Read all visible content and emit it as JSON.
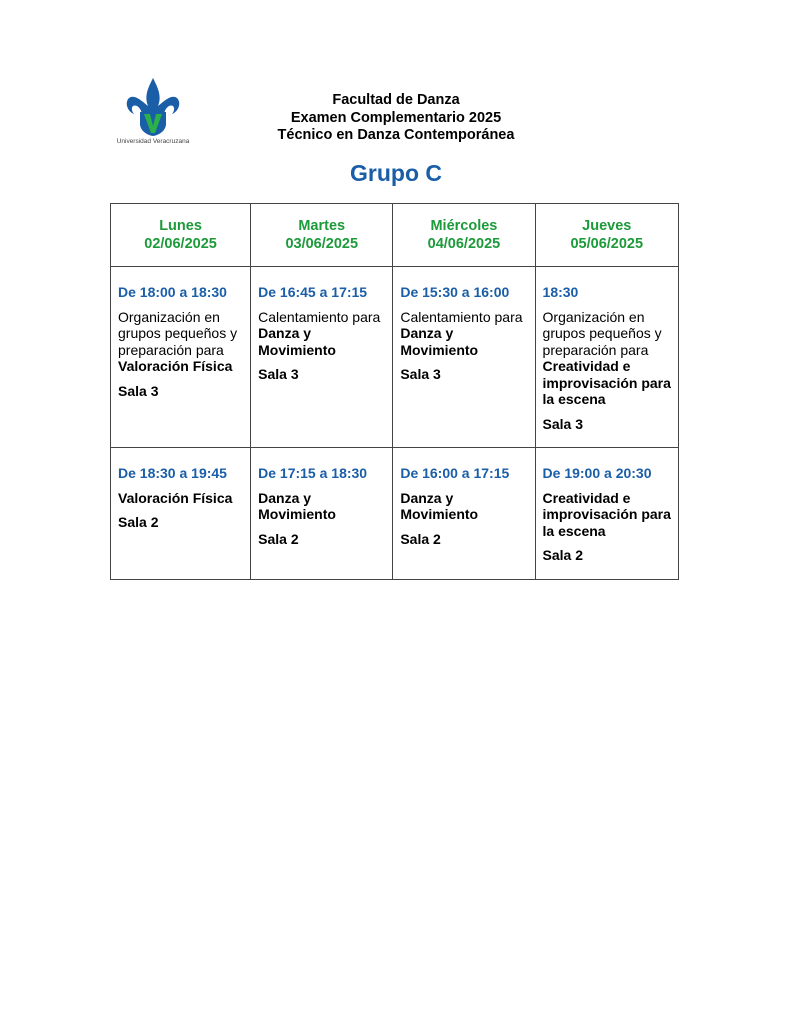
{
  "logo": {
    "text": "Universidad Veracruzana",
    "colors": {
      "blue": "#1a5ea8",
      "green": "#2bb04a"
    }
  },
  "header": {
    "line1": "Facultad de Danza",
    "line2": "Examen Complementario 2025",
    "line3": "Técnico en Danza Contemporánea"
  },
  "title": "Grupo C",
  "colors": {
    "day": "#1d9a3a",
    "time": "#1a5ea8"
  },
  "days": [
    {
      "name": "Lunes",
      "date": "02/06/2025"
    },
    {
      "name": "Martes",
      "date": "03/06/2025"
    },
    {
      "name": "Miércoles",
      "date": "04/06/2025"
    },
    {
      "name": "Jueves",
      "date": "05/06/2025"
    }
  ],
  "rows": [
    [
      {
        "time": "De 18:00 a 18:30",
        "text": "Organización en grupos pequeños y preparación para ",
        "bold": "Valoración Física",
        "sala": "Sala 3"
      },
      {
        "time": "De 16:45 a 17:15",
        "text": "Calentamiento para ",
        "bold": "Danza y Movimiento",
        "sala": "Sala 3"
      },
      {
        "time": "De 15:30 a 16:00",
        "text": "Calentamiento para ",
        "bold": "Danza y Movimiento",
        "sala": "Sala 3"
      },
      {
        "time": "18:30",
        "text": "Organización en grupos pequeños y preparación para ",
        "bold": "Creatividad e improvisación para la escena",
        "sala": "Sala 3"
      }
    ],
    [
      {
        "time": "De 18:30 a 19:45",
        "text": "",
        "bold": "Valoración Física",
        "sala": "Sala 2"
      },
      {
        "time": "De 17:15 a 18:30",
        "text": "",
        "bold": "Danza y Movimiento",
        "sala": "Sala 2"
      },
      {
        "time": "De 16:00 a 17:15",
        "text": "",
        "bold": "Danza y Movimiento",
        "sala": "Sala 2"
      },
      {
        "time": "De 19:00 a 20:30",
        "text": "",
        "bold": "Creatividad e improvisación para la escena",
        "sala": "Sala 2"
      }
    ]
  ]
}
